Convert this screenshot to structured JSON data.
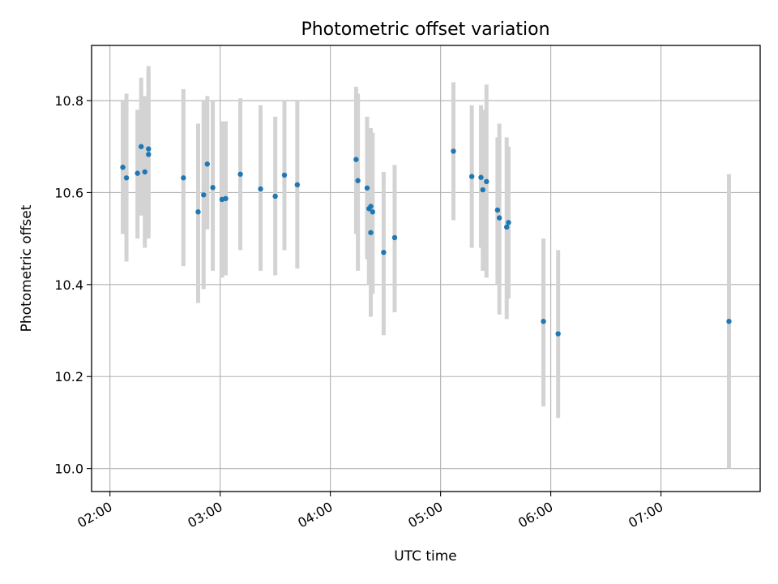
{
  "chart_data": {
    "type": "scatter",
    "title": "Photometric offset variation",
    "xlabel": "UTC time",
    "ylabel": "Photometric offset",
    "x_unit": "UTC",
    "xlim": [
      "01:50",
      "07:54"
    ],
    "ylim": [
      9.95,
      10.92
    ],
    "x_ticks": [
      "02:00",
      "03:00",
      "04:00",
      "05:00",
      "06:00",
      "07:00"
    ],
    "y_ticks": [
      10.0,
      10.2,
      10.4,
      10.6,
      10.8
    ],
    "grid": true,
    "legend": "none",
    "point_color": "#1f77b4",
    "errorbar_color": "#d3d3d3",
    "points": [
      {
        "x": "02:07",
        "y": 10.655,
        "lo": 10.51,
        "hi": 10.8
      },
      {
        "x": "02:09",
        "y": 10.632,
        "lo": 10.45,
        "hi": 10.815
      },
      {
        "x": "02:15",
        "y": 10.642,
        "lo": 10.5,
        "hi": 10.78
      },
      {
        "x": "02:17",
        "y": 10.7,
        "lo": 10.55,
        "hi": 10.85
      },
      {
        "x": "02:19",
        "y": 10.645,
        "lo": 10.48,
        "hi": 10.81
      },
      {
        "x": "02:21",
        "y": 10.683,
        "lo": 10.5,
        "hi": 10.875
      },
      {
        "x": "02:21",
        "y": 10.695,
        "lo": 10.52,
        "hi": 10.86
      },
      {
        "x": "02:40",
        "y": 10.632,
        "lo": 10.44,
        "hi": 10.825
      },
      {
        "x": "02:48",
        "y": 10.558,
        "lo": 10.36,
        "hi": 10.75
      },
      {
        "x": "02:51",
        "y": 10.595,
        "lo": 10.39,
        "hi": 10.8
      },
      {
        "x": "02:53",
        "y": 10.662,
        "lo": 10.52,
        "hi": 10.81
      },
      {
        "x": "02:56",
        "y": 10.611,
        "lo": 10.43,
        "hi": 10.8
      },
      {
        "x": "03:01",
        "y": 10.585,
        "lo": 10.415,
        "hi": 10.755
      },
      {
        "x": "03:03",
        "y": 10.587,
        "lo": 10.42,
        "hi": 10.755
      },
      {
        "x": "03:11",
        "y": 10.64,
        "lo": 10.475,
        "hi": 10.805
      },
      {
        "x": "03:22",
        "y": 10.608,
        "lo": 10.43,
        "hi": 10.79
      },
      {
        "x": "03:30",
        "y": 10.592,
        "lo": 10.42,
        "hi": 10.765
      },
      {
        "x": "03:35",
        "y": 10.638,
        "lo": 10.475,
        "hi": 10.8
      },
      {
        "x": "03:42",
        "y": 10.617,
        "lo": 10.435,
        "hi": 10.8
      },
      {
        "x": "04:14",
        "y": 10.672,
        "lo": 10.51,
        "hi": 10.83
      },
      {
        "x": "04:15",
        "y": 10.626,
        "lo": 10.43,
        "hi": 10.815
      },
      {
        "x": "04:20",
        "y": 10.61,
        "lo": 10.455,
        "hi": 10.765
      },
      {
        "x": "04:21",
        "y": 10.565,
        "lo": 10.4,
        "hi": 10.73
      },
      {
        "x": "04:22",
        "y": 10.513,
        "lo": 10.33,
        "hi": 10.7
      },
      {
        "x": "04:22",
        "y": 10.57,
        "lo": 10.4,
        "hi": 10.74
      },
      {
        "x": "04:23",
        "y": 10.558,
        "lo": 10.38,
        "hi": 10.73
      },
      {
        "x": "04:29",
        "y": 10.47,
        "lo": 10.29,
        "hi": 10.645
      },
      {
        "x": "04:35",
        "y": 10.502,
        "lo": 10.34,
        "hi": 10.66
      },
      {
        "x": "05:07",
        "y": 10.69,
        "lo": 10.54,
        "hi": 10.84
      },
      {
        "x": "05:17",
        "y": 10.635,
        "lo": 10.48,
        "hi": 10.79
      },
      {
        "x": "05:22",
        "y": 10.633,
        "lo": 10.48,
        "hi": 10.79
      },
      {
        "x": "05:23",
        "y": 10.606,
        "lo": 10.43,
        "hi": 10.78
      },
      {
        "x": "05:25",
        "y": 10.624,
        "lo": 10.415,
        "hi": 10.835
      },
      {
        "x": "05:31",
        "y": 10.562,
        "lo": 10.4,
        "hi": 10.72
      },
      {
        "x": "05:32",
        "y": 10.545,
        "lo": 10.335,
        "hi": 10.75
      },
      {
        "x": "05:36",
        "y": 10.525,
        "lo": 10.325,
        "hi": 10.72
      },
      {
        "x": "05:37",
        "y": 10.535,
        "lo": 10.37,
        "hi": 10.7
      },
      {
        "x": "05:56",
        "y": 10.32,
        "lo": 10.135,
        "hi": 10.5
      },
      {
        "x": "06:04",
        "y": 10.293,
        "lo": 10.11,
        "hi": 10.475
      },
      {
        "x": "07:37",
        "y": 10.32,
        "lo": 10.0,
        "hi": 10.64
      }
    ]
  }
}
